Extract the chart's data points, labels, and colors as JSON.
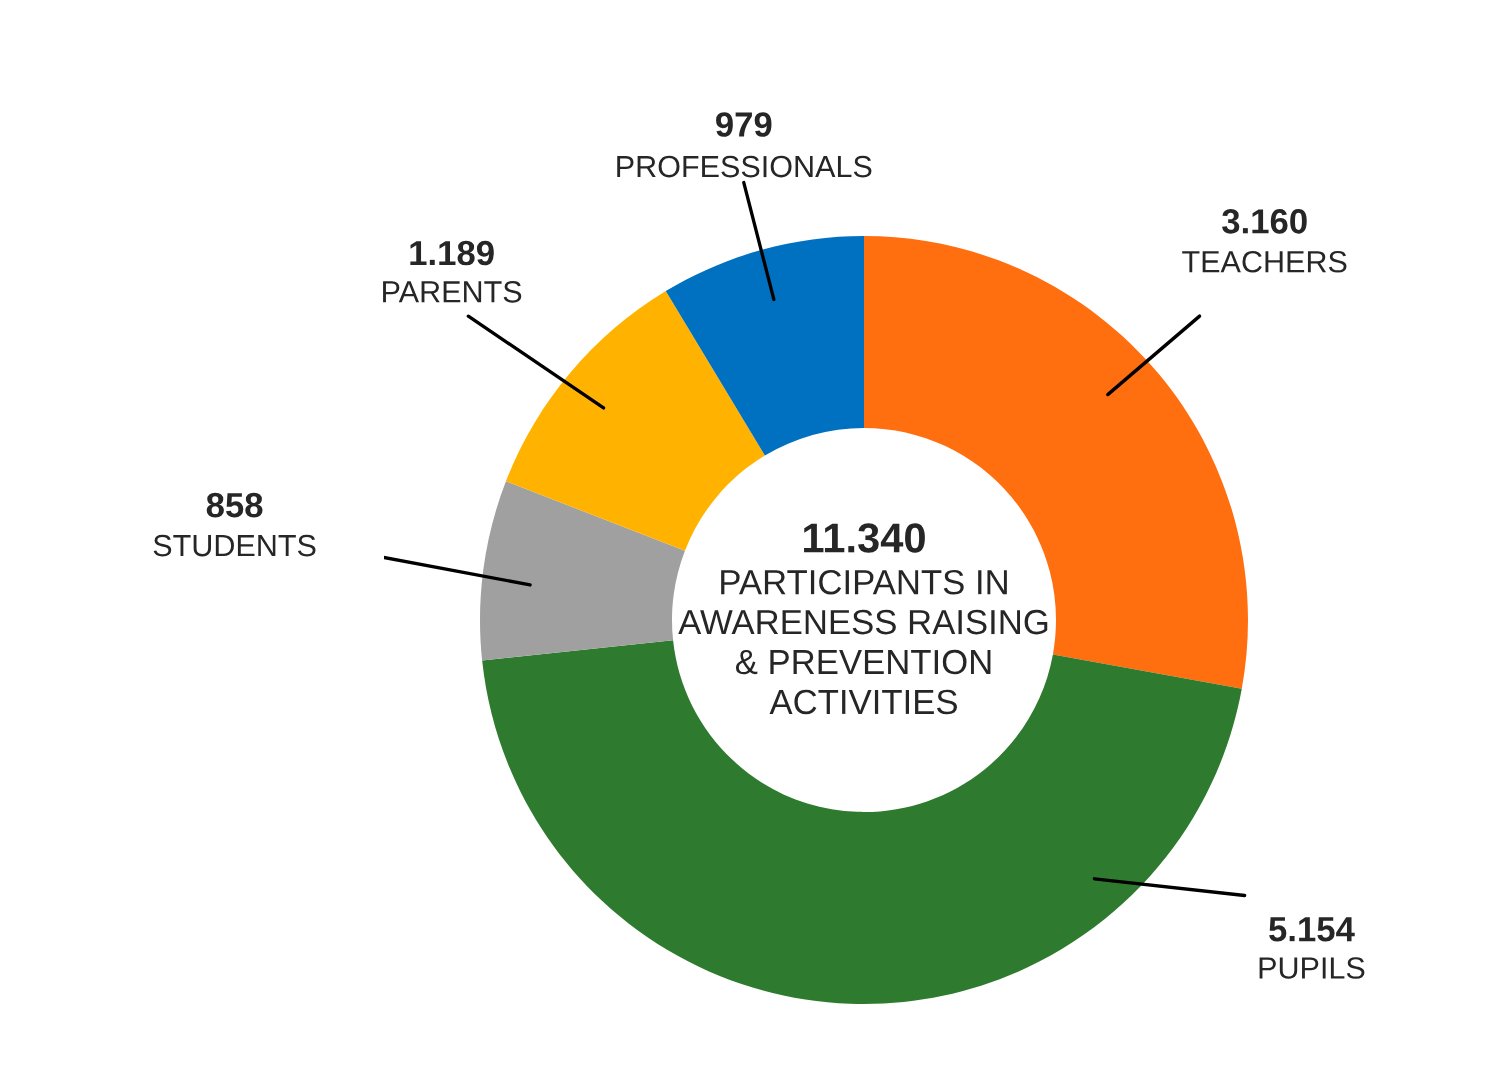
{
  "chart_data": {
    "type": "donut",
    "categories": [
      "TEACHERS",
      "PUPILS",
      "STUDENTS",
      "PARENTS",
      "PROFESSIONALS"
    ],
    "values": [
      3160,
      5154,
      858,
      1189,
      979
    ],
    "value_labels": [
      "3.160",
      "5.154",
      "858",
      "1.189",
      "979"
    ],
    "colors": [
      "#ff6f0f",
      "#2e7b2f",
      "#a0a0a0",
      "#ffb300",
      "#0070c0"
    ],
    "annotations": [
      "11.340",
      "PARTICIPANTS IN\nAWARENESS RAISING\n& PREVENTION\nACTIVITIES"
    ],
    "legend": false
  }
}
